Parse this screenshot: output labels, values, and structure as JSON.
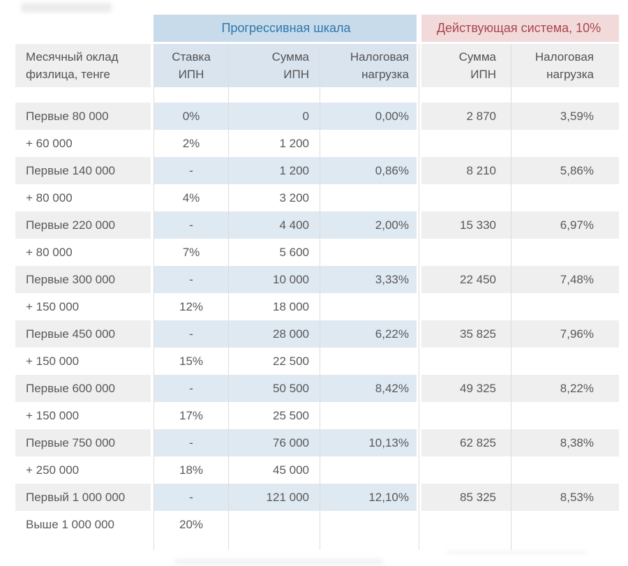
{
  "chart_data": {
    "type": "table",
    "group_headers": [
      {
        "label": "Прогрессивная шкала",
        "spans_columns": [
          "Ставка ИПН",
          "Сумма ИПН",
          "Налоговая нагрузка"
        ]
      },
      {
        "label": "Действующая система, 10%",
        "spans_columns": [
          "Сумма ИПН",
          "Налоговая нагрузка"
        ]
      }
    ],
    "columns": [
      "Месячный оклад\nфизлица, тенге",
      "Ставка\nИПН",
      "Сумма\nИПН",
      "Налоговая\nнагрузка",
      "Сумма\nИПН",
      "Налоговая\nнагрузка"
    ],
    "rows": [
      {
        "shaded": true,
        "cells": [
          "Первые 80 000",
          "0%",
          "0",
          "0,00%",
          "2 870",
          "3,59%"
        ]
      },
      {
        "shaded": false,
        "cells": [
          "+ 60 000",
          "2%",
          "1 200",
          "",
          "",
          ""
        ]
      },
      {
        "shaded": true,
        "cells": [
          "Первые 140 000",
          "-",
          "1 200",
          "0,86%",
          "8 210",
          "5,86%"
        ]
      },
      {
        "shaded": false,
        "cells": [
          "+ 80 000",
          "4%",
          "3 200",
          "",
          "",
          ""
        ]
      },
      {
        "shaded": true,
        "cells": [
          "Первые 220 000",
          "-",
          "4 400",
          "2,00%",
          "15 330",
          "6,97%"
        ]
      },
      {
        "shaded": false,
        "cells": [
          "+ 80 000",
          "7%",
          "5 600",
          "",
          "",
          ""
        ]
      },
      {
        "shaded": true,
        "cells": [
          "Первые 300 000",
          "-",
          "10 000",
          "3,33%",
          "22 450",
          "7,48%"
        ]
      },
      {
        "shaded": false,
        "cells": [
          "+ 150 000",
          "12%",
          "18 000",
          "",
          "",
          ""
        ]
      },
      {
        "shaded": true,
        "cells": [
          "Первые 450 000",
          "-",
          "28 000",
          "6,22%",
          "35 825",
          "7,96%"
        ]
      },
      {
        "shaded": false,
        "cells": [
          "+ 150 000",
          "15%",
          "22 500",
          "",
          "",
          ""
        ]
      },
      {
        "shaded": true,
        "cells": [
          "Первые 600 000",
          "-",
          "50 500",
          "8,42%",
          "49 325",
          "8,22%"
        ]
      },
      {
        "shaded": false,
        "cells": [
          "+ 150 000",
          "17%",
          "25 500",
          "",
          "",
          ""
        ]
      },
      {
        "shaded": true,
        "cells": [
          "Первые 750 000",
          "-",
          "76 000",
          "10,13%",
          "62 825",
          "8,38%"
        ]
      },
      {
        "shaded": false,
        "cells": [
          "+ 250 000",
          "18%",
          "45 000",
          "",
          "",
          ""
        ]
      },
      {
        "shaded": true,
        "cells": [
          "Первый 1 000 000",
          "-",
          "121 000",
          "12,10%",
          "85 325",
          "8,53%"
        ]
      },
      {
        "shaded": false,
        "cells": [
          "Выше 1 000 000",
          "20%",
          "",
          "",
          "",
          ""
        ]
      }
    ],
    "layout_hints": {
      "grid": "light vertical column separators only",
      "shaded_row_colors": {
        "first_column": "#f0efef",
        "progressive_columns": "#dfe9f2",
        "current_columns": "#f0efef"
      }
    }
  },
  "colors": {
    "progressive_band_bg": "#c8dbea",
    "progressive_band_text": "#2f77ac",
    "current_band_bg": "#f2dada",
    "current_band_text": "#a9464f",
    "column_header_blue_bg": "#dae4ee",
    "row_highlight_blue": "#dfe9f2",
    "row_highlight_gray": "#f0efef",
    "grid_line": "#dcdcdc",
    "body_text": "#58585a"
  }
}
